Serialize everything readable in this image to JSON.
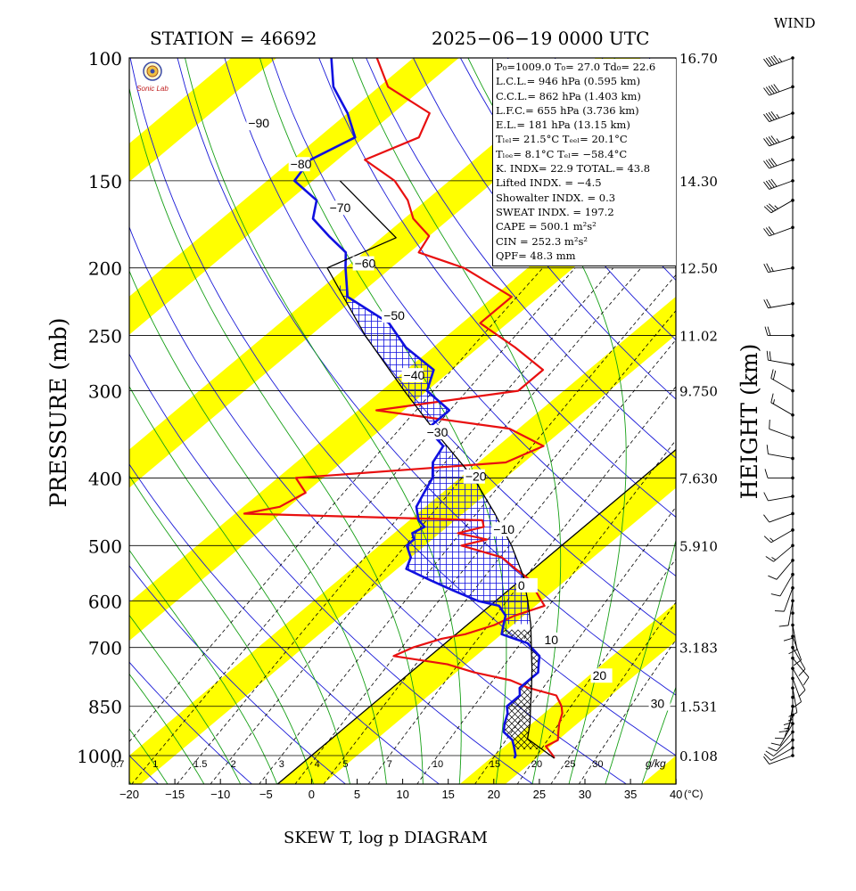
{
  "header": {
    "station": "STATION = 46692",
    "datetime": "2025−06−19 0000 UTC",
    "wind_label": "WIND",
    "footer_title": "SKEW T, log p DIAGRAM"
  },
  "logo": {
    "text": "Sonic Lab"
  },
  "info_lines": [
    "P₀=1009.0 T₀= 27.0 Td₀= 22.6",
    "L.C.L.= 946 hPa (0.595 km)",
    "C.C.L.= 862 hPa (1.403 km)",
    "L.F.C.= 655 hPa (3.736 km)",
    "E.L.= 181 hPa (13.15 km)",
    "Tₗₑₗ= 21.5°C Tₑₑₗ= 20.1°C",
    "Tₗₒₑ=  8.1°C  Tₑₗ= −58.4°C",
    "K. INDX= 22.9  TOTAL.= 43.8",
    "Lifted INDX. =  −4.5",
    "Showalter INDX. =    0.3",
    "SWEAT INDX. =  197.2",
    "CAPE  =  500.1 m²s²",
    "CIN   =  252.3 m²s²",
    "QPF= 48.3 mm"
  ],
  "colors": {
    "stripe": "#ffff00",
    "temperature": "#e81010",
    "dewpoint": "#1010e0",
    "parcel": "#000000",
    "dry_adiabat": "#1a1ad8",
    "moist_adiabat": "#16a016",
    "mixing_ratio": "#000000"
  },
  "chart_data": {
    "type": "line",
    "title": "SKEW T, log p DIAGRAM",
    "xlabel": "(°C)",
    "ylabel": "PRESSURE (mb)",
    "y2label": "HEIGHT (km)",
    "xlim": [
      -20,
      40
    ],
    "ylim": [
      1000,
      100
    ],
    "y_scale": "log",
    "x_ticks": [
      -20,
      -15,
      -10,
      -5,
      0,
      5,
      10,
      15,
      20,
      25,
      30,
      35,
      40
    ],
    "pressure_levels": [
      100,
      150,
      200,
      250,
      300,
      400,
      500,
      600,
      700,
      850,
      1000
    ],
    "heights_km": [
      "16.70",
      "14.30",
      "12.50",
      "11.02",
      "9.750",
      "7.630",
      "5.910",
      "",
      "3.183",
      "1.531",
      "0.108"
    ],
    "isotherm_labels": [
      -90,
      -80,
      -70,
      -60,
      -50,
      -40,
      -30,
      -20,
      -10,
      0,
      10,
      20,
      30
    ],
    "mixing_ratio_labels": [
      "0.7",
      "1",
      "1.5",
      "2",
      "3",
      "4",
      "5",
      "7",
      "10",
      "15",
      "20",
      "25",
      "30"
    ],
    "mixing_ratio_unit": "g/kg",
    "series": [
      {
        "name": "",
        "p": [
          1009,
          1000,
          970,
          950,
          925,
          900,
          870,
          850,
          820,
          800,
          780,
          760,
          740,
          720,
          700,
          690,
          680,
          670,
          650,
          630,
          610,
          600,
          580,
          560,
          540,
          520,
          500,
          490,
          480,
          470,
          460,
          450,
          440,
          420,
          400,
          380,
          360,
          340,
          320,
          300,
          280,
          260,
          240,
          220,
          200,
          190,
          180,
          170,
          160,
          150,
          140,
          130,
          120,
          110,
          100
        ],
        "t": [
          27.0,
          26.5,
          24.5,
          25.0,
          24.0,
          23.0,
          22.0,
          21.0,
          19.0,
          15.0,
          12.0,
          7.0,
          3.0,
          -4.0,
          -3.0,
          -2.0,
          -1.0,
          1.0,
          3.0,
          4.0,
          6.0,
          5.0,
          3.0,
          1.0,
          -2.0,
          -5.0,
          -11.0,
          -9.0,
          -13.0,
          -11.0,
          -12.0,
          -39.0,
          -36.0,
          -35.0,
          -38.0,
          -17.0,
          -15.0,
          -21.0,
          -38.0,
          -25.0,
          -25.0,
          -31.0,
          -38.0,
          -38.0,
          -47.0,
          -54.0,
          -55.0,
          -59.0,
          -62.0,
          -66.0,
          -72.0,
          -69.0,
          -71.0,
          -79.0,
          -84.0
        ]
      },
      {
        "name": "",
        "p": [
          1009,
          1000,
          970,
          950,
          925,
          900,
          870,
          850,
          820,
          800,
          780,
          760,
          740,
          720,
          700,
          690,
          680,
          670,
          650,
          630,
          610,
          600,
          580,
          560,
          540,
          520,
          500,
          490,
          480,
          470,
          460,
          450,
          440,
          420,
          400,
          380,
          360,
          340,
          320,
          300,
          280,
          260,
          240,
          220,
          200,
          190,
          180,
          170,
          160,
          150,
          140,
          130,
          120,
          110,
          100
        ],
        "t": [
          22.6,
          22.4,
          21.0,
          20.0,
          18.0,
          17.0,
          16.0,
          15.0,
          15.0,
          14.0,
          14.0,
          14.0,
          13.0,
          12.0,
          10.0,
          9.0,
          7.0,
          5.0,
          4.0,
          3.0,
          1.0,
          -2.0,
          -6.0,
          -10.0,
          -14.0,
          -15.0,
          -17.0,
          -17.0,
          -18.0,
          -17.5,
          -19.0,
          -20.0,
          -21.0,
          -22.0,
          -23.0,
          -25.0,
          -26.0,
          -30.0,
          -30.0,
          -35.0,
          -37.0,
          -43.0,
          -48.0,
          -56.0,
          -60.0,
          -62.0,
          -66.0,
          -70.0,
          -72.0,
          -77.0,
          -78.0,
          -76.0,
          -80.0,
          -85.0,
          -89.0
        ]
      },
      {
        "name": "",
        "p": [
          1009,
          946,
          900,
          850,
          800,
          750,
          700,
          650,
          600,
          550,
          500,
          450,
          400,
          350,
          300,
          250,
          200,
          181,
          150
        ],
        "t": [
          27.0,
          21.5,
          19.8,
          17.6,
          15.3,
          12.8,
          10.0,
          7.0,
          3.5,
          -0.5,
          -5.5,
          -11.5,
          -18.5,
          -27.5,
          -37.5,
          -49.0,
          -62.0,
          -58.4,
          -72.0
        ]
      }
    ],
    "wind_barbs": {
      "p": [
        1000,
        975,
        950,
        925,
        900,
        875,
        850,
        825,
        800,
        775,
        750,
        725,
        700,
        675,
        650,
        625,
        600,
        575,
        550,
        525,
        500,
        475,
        450,
        425,
        400,
        375,
        350,
        325,
        300,
        275,
        250,
        225,
        200,
        175,
        160,
        150,
        140,
        130,
        120,
        110,
        100
      ],
      "dir": [
        250,
        240,
        230,
        220,
        210,
        200,
        190,
        180,
        170,
        160,
        150,
        140,
        150,
        160,
        170,
        180,
        190,
        200,
        210,
        220,
        230,
        240,
        250,
        260,
        270,
        280,
        290,
        300,
        300,
        280,
        270,
        260,
        260,
        250,
        240,
        250,
        250,
        250,
        250,
        250,
        250
      ],
      "speed": [
        10,
        10,
        10,
        10,
        10,
        10,
        15,
        15,
        10,
        10,
        10,
        10,
        10,
        10,
        10,
        10,
        10,
        10,
        10,
        10,
        15,
        15,
        10,
        10,
        10,
        10,
        10,
        15,
        20,
        20,
        20,
        20,
        25,
        30,
        35,
        40,
        40,
        45,
        45,
        50,
        55
      ]
    }
  }
}
